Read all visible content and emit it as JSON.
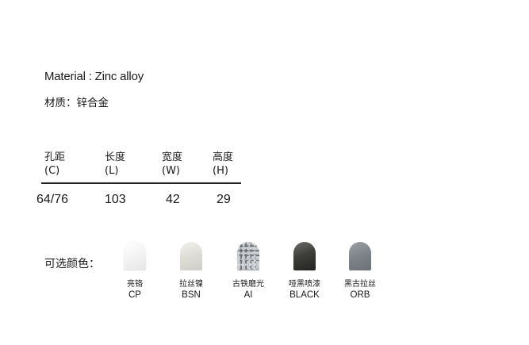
{
  "material": {
    "en": "Material : Zinc alloy",
    "cn": "材质：锌合金"
  },
  "specs": {
    "headers": [
      {
        "cn": "孔距",
        "en": "(C)"
      },
      {
        "cn": "长度",
        "en": "(L)"
      },
      {
        "cn": "宽度",
        "en": "(W)"
      },
      {
        "cn": "高度",
        "en": "(H)"
      }
    ],
    "values": [
      "64/76",
      "103",
      "42",
      "29"
    ]
  },
  "colors": {
    "label": "可选颜色：",
    "items": [
      {
        "cn": "亮铬",
        "code": "CP",
        "color": "#f4f4f4"
      },
      {
        "cn": "拉丝镍",
        "code": "BSN",
        "color": "#dedcd6"
      },
      {
        "cn": "古铁磨光",
        "code": "AI",
        "color": "#8b8f95"
      },
      {
        "cn": "哑黑喷漆",
        "code": "BLACK",
        "color": "#3e3e3b"
      },
      {
        "cn": "黑古拉丝",
        "code": "ORB",
        "color": "#7e838a"
      }
    ]
  }
}
